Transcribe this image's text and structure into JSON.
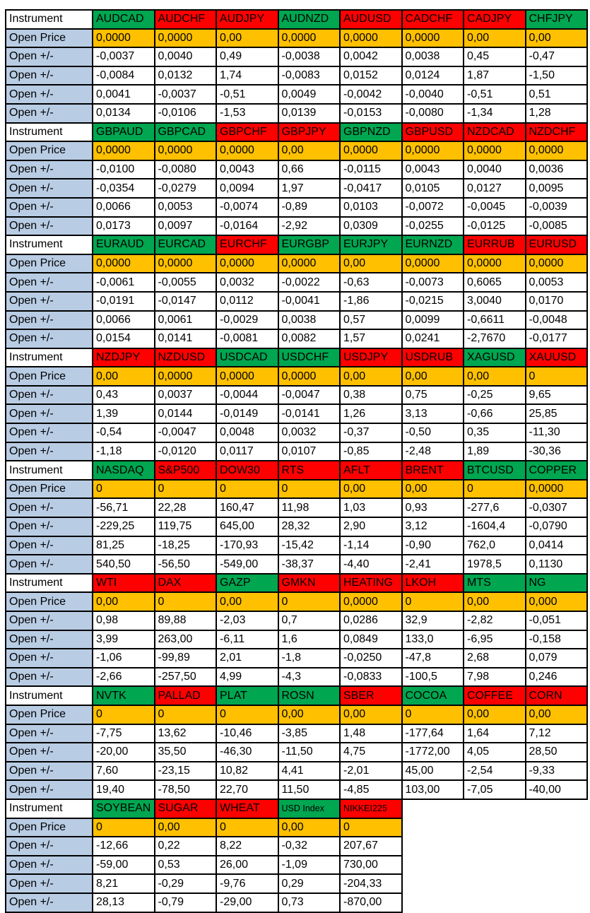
{
  "labels": {
    "instrument": "Instrument",
    "open_price": "Open Price",
    "open_change": "Open +/-"
  },
  "colors": {
    "green": "#00A650",
    "red": "#FF0000",
    "orange": "#FFC000",
    "label_blue": "#B8CCE4",
    "border": "#000000"
  },
  "blocks": [
    {
      "headers": [
        {
          "name": "AUDCAD",
          "color": "green"
        },
        {
          "name": "AUDCHF",
          "color": "red"
        },
        {
          "name": "AUDJPY",
          "color": "red"
        },
        {
          "name": "AUDNZD",
          "color": "green"
        },
        {
          "name": "AUDUSD",
          "color": "red"
        },
        {
          "name": "CADCHF",
          "color": "red"
        },
        {
          "name": "CADJPY",
          "color": "red"
        },
        {
          "name": "CHFJPY",
          "color": "green"
        }
      ],
      "open_price": [
        "0,0000",
        "0,0000",
        "0,00",
        "0,0000",
        "0,0000",
        "0,0000",
        "0,00",
        "0,00"
      ],
      "change_rows": [
        [
          "-0,0037",
          "0,0040",
          "0,49",
          "-0,0038",
          "0,0042",
          "0,0038",
          "0,45",
          "-0,47"
        ],
        [
          "-0,0084",
          "0,0132",
          "1,74",
          "-0,0083",
          "0,0152",
          "0,0124",
          "1,87",
          "-1,50"
        ],
        [
          "0,0041",
          "-0,0037",
          "-0,51",
          "0,0049",
          "-0,0042",
          "-0,0040",
          "-0,51",
          "0,51"
        ],
        [
          "0,0134",
          "-0,0106",
          "-1,53",
          "0,0139",
          "-0,0153",
          "-0,0080",
          "-1,34",
          "1,28"
        ]
      ]
    },
    {
      "headers": [
        {
          "name": "GBPAUD",
          "color": "green"
        },
        {
          "name": "GBPCAD",
          "color": "green"
        },
        {
          "name": "GBPCHF",
          "color": "red"
        },
        {
          "name": "GBPJPY",
          "color": "red"
        },
        {
          "name": "GBPNZD",
          "color": "green"
        },
        {
          "name": "GBPUSD",
          "color": "red"
        },
        {
          "name": "NZDCAD",
          "color": "red"
        },
        {
          "name": "NZDCHF",
          "color": "red"
        }
      ],
      "open_price": [
        "0,0000",
        "0,0000",
        "0,0000",
        "0,00",
        "0,0000",
        "0,0000",
        "0,0000",
        "0,0000"
      ],
      "change_rows": [
        [
          "-0,0100",
          "-0,0080",
          "0,0043",
          "0,66",
          "-0,0115",
          "0,0043",
          "0,0040",
          "0,0036"
        ],
        [
          "-0,0354",
          "-0,0279",
          "0,0094",
          "1,97",
          "-0,0417",
          "0,0105",
          "0,0127",
          "0,0095"
        ],
        [
          "0,0066",
          "0,0053",
          "-0,0074",
          "-0,89",
          "0,0103",
          "-0,0072",
          "-0,0045",
          "-0,0039"
        ],
        [
          "0,0173",
          "0,0097",
          "-0,0164",
          "-2,92",
          "0,0309",
          "-0,0255",
          "-0,0125",
          "-0,0085"
        ]
      ]
    },
    {
      "headers": [
        {
          "name": "EURAUD",
          "color": "green"
        },
        {
          "name": "EURCAD",
          "color": "green"
        },
        {
          "name": "EURCHF",
          "color": "red"
        },
        {
          "name": "EURGBP",
          "color": "green"
        },
        {
          "name": "EURJPY",
          "color": "green"
        },
        {
          "name": "EURNZD",
          "color": "green"
        },
        {
          "name": "EURRUB",
          "color": "red"
        },
        {
          "name": "EURUSD",
          "color": "red"
        }
      ],
      "open_price": [
        "0,0000",
        "0,0000",
        "0,0000",
        "0,0000",
        "0,00",
        "0,0000",
        "0,0000",
        "0,0000"
      ],
      "change_rows": [
        [
          "-0,0061",
          "-0,0055",
          "0,0032",
          "-0,0022",
          "-0,63",
          "-0,0073",
          "0,6065",
          "0,0053"
        ],
        [
          "-0,0191",
          "-0,0147",
          "0,0112",
          "-0,0041",
          "-1,86",
          "-0,0215",
          "3,0040",
          "0,0170"
        ],
        [
          "0,0066",
          "0,0061",
          "-0,0029",
          "0,0038",
          "0,57",
          "0,0099",
          "-0,6611",
          "-0,0048"
        ],
        [
          "0,0154",
          "0,0141",
          "-0,0081",
          "0,0082",
          "1,57",
          "0,0241",
          "-2,7670",
          "-0,0177"
        ]
      ]
    },
    {
      "headers": [
        {
          "name": "NZDJPY",
          "color": "red"
        },
        {
          "name": "NZDUSD",
          "color": "red"
        },
        {
          "name": "USDCAD",
          "color": "green"
        },
        {
          "name": "USDCHF",
          "color": "green"
        },
        {
          "name": "USDJPY",
          "color": "red"
        },
        {
          "name": "USDRUB",
          "color": "red"
        },
        {
          "name": "XAGUSD",
          "color": "green"
        },
        {
          "name": "XAUUSD",
          "color": "red"
        }
      ],
      "open_price": [
        "0,00",
        "0,0000",
        "0,0000",
        "0,0000",
        "0,00",
        "0,00",
        "0,00",
        "0"
      ],
      "change_rows": [
        [
          "0,43",
          "0,0037",
          "-0,0044",
          "-0,0047",
          "0,38",
          "0,75",
          "-0,25",
          "9,65"
        ],
        [
          "1,39",
          "0,0144",
          "-0,0149",
          "-0,0141",
          "1,26",
          "3,13",
          "-0,66",
          "25,85"
        ],
        [
          "-0,54",
          "-0,0047",
          "0,0048",
          "0,0032",
          "-0,37",
          "-0,50",
          "0,35",
          "-11,30"
        ],
        [
          "-1,18",
          "-0,0120",
          "0,0117",
          "0,0107",
          "-0,85",
          "-2,48",
          "1,89",
          "-30,36"
        ]
      ]
    },
    {
      "headers": [
        {
          "name": "NASDAQ",
          "color": "green"
        },
        {
          "name": "S&P500",
          "color": "red"
        },
        {
          "name": "DOW30",
          "color": "red"
        },
        {
          "name": "RTS",
          "color": "red"
        },
        {
          "name": "AFLT",
          "color": "red"
        },
        {
          "name": "BRENT",
          "color": "red"
        },
        {
          "name": "BTCUSD",
          "color": "green"
        },
        {
          "name": "COPPER",
          "color": "green"
        }
      ],
      "open_price": [
        "0",
        "0",
        "0",
        "0",
        "0,00",
        "0,00",
        "0",
        "0,0000"
      ],
      "change_rows": [
        [
          "-56,71",
          "22,28",
          "160,47",
          "11,98",
          "1,03",
          "0,93",
          "-277,6",
          "-0,0307"
        ],
        [
          "-229,25",
          "119,75",
          "645,00",
          "28,32",
          "2,90",
          "3,12",
          "-1604,4",
          "-0,0790"
        ],
        [
          "81,25",
          "-18,25",
          "-170,93",
          "-15,42",
          "-1,14",
          "-0,90",
          "762,0",
          "0,0414"
        ],
        [
          "540,50",
          "-56,50",
          "-549,00",
          "-38,37",
          "-4,40",
          "-2,41",
          "1978,5",
          "0,1130"
        ]
      ]
    },
    {
      "headers": [
        {
          "name": "WTI",
          "color": "red"
        },
        {
          "name": "DAX",
          "color": "red"
        },
        {
          "name": "GAZP",
          "color": "green"
        },
        {
          "name": "GMKN",
          "color": "red"
        },
        {
          "name": "HEATING",
          "color": "red"
        },
        {
          "name": "LKOH",
          "color": "red"
        },
        {
          "name": "MTS",
          "color": "green"
        },
        {
          "name": "NG",
          "color": "green"
        }
      ],
      "open_price": [
        "0,00",
        "0",
        "0,00",
        "0",
        "0,0000",
        "0",
        "0,00",
        "0,000"
      ],
      "change_rows": [
        [
          "0,98",
          "89,88",
          "-2,03",
          "0,7",
          "0,0286",
          "32,9",
          "-2,82",
          "-0,051"
        ],
        [
          "3,99",
          "263,00",
          "-6,11",
          "1,6",
          "0,0849",
          "133,0",
          "-6,95",
          "-0,158"
        ],
        [
          "-1,06",
          "-99,89",
          "2,01",
          "-1,8",
          "-0,0250",
          "-47,8",
          "2,68",
          "0,079"
        ],
        [
          "-2,66",
          "-257,50",
          "4,99",
          "-4,3",
          "-0,0833",
          "-100,5",
          "7,98",
          "0,246"
        ]
      ]
    },
    {
      "headers": [
        {
          "name": "NVTK",
          "color": "green"
        },
        {
          "name": "PALLAD",
          "color": "red"
        },
        {
          "name": "PLAT",
          "color": "green"
        },
        {
          "name": "ROSN",
          "color": "green"
        },
        {
          "name": "SBER",
          "color": "red"
        },
        {
          "name": "COCOA",
          "color": "green"
        },
        {
          "name": "COFFEE",
          "color": "red"
        },
        {
          "name": "CORN",
          "color": "red"
        }
      ],
      "open_price": [
        "0",
        "0",
        "0",
        "0,00",
        "0,00",
        "0",
        "0,00",
        "0,00"
      ],
      "change_rows": [
        [
          "-7,75",
          "13,62",
          "-10,46",
          "-3,85",
          "1,48",
          "-177,64",
          "1,64",
          "7,12"
        ],
        [
          "-20,00",
          "35,50",
          "-46,30",
          "-11,50",
          "4,75",
          "-1772,00",
          "4,05",
          "28,50"
        ],
        [
          "7,60",
          "-23,15",
          "10,82",
          "4,41",
          "-2,01",
          "45,00",
          "-2,54",
          "-9,33"
        ],
        [
          "19,40",
          "-78,50",
          "22,70",
          "11,50",
          "-4,85",
          "103,00",
          "-7,05",
          "-40,00"
        ]
      ]
    },
    {
      "headers": [
        {
          "name": "SOYBEAN",
          "color": "green"
        },
        {
          "name": "SUGAR",
          "color": "red"
        },
        {
          "name": "WHEAT",
          "color": "red"
        },
        {
          "name": "USD Index",
          "color": "green",
          "small": true
        },
        {
          "name": "NIKKEI225",
          "color": "red",
          "small": true
        }
      ],
      "open_price": [
        "0",
        "0,00",
        "0",
        "0,00",
        "0"
      ],
      "change_rows": [
        [
          "-12,66",
          "0,22",
          "8,22",
          "-0,32",
          "207,67"
        ],
        [
          "-59,00",
          "0,53",
          "26,00",
          "-1,09",
          "730,00"
        ],
        [
          "8,21",
          "-0,29",
          "-9,76",
          "0,29",
          "-204,33"
        ],
        [
          "28,13",
          "-0,79",
          "-29,00",
          "0,73",
          "-870,00"
        ]
      ]
    }
  ]
}
